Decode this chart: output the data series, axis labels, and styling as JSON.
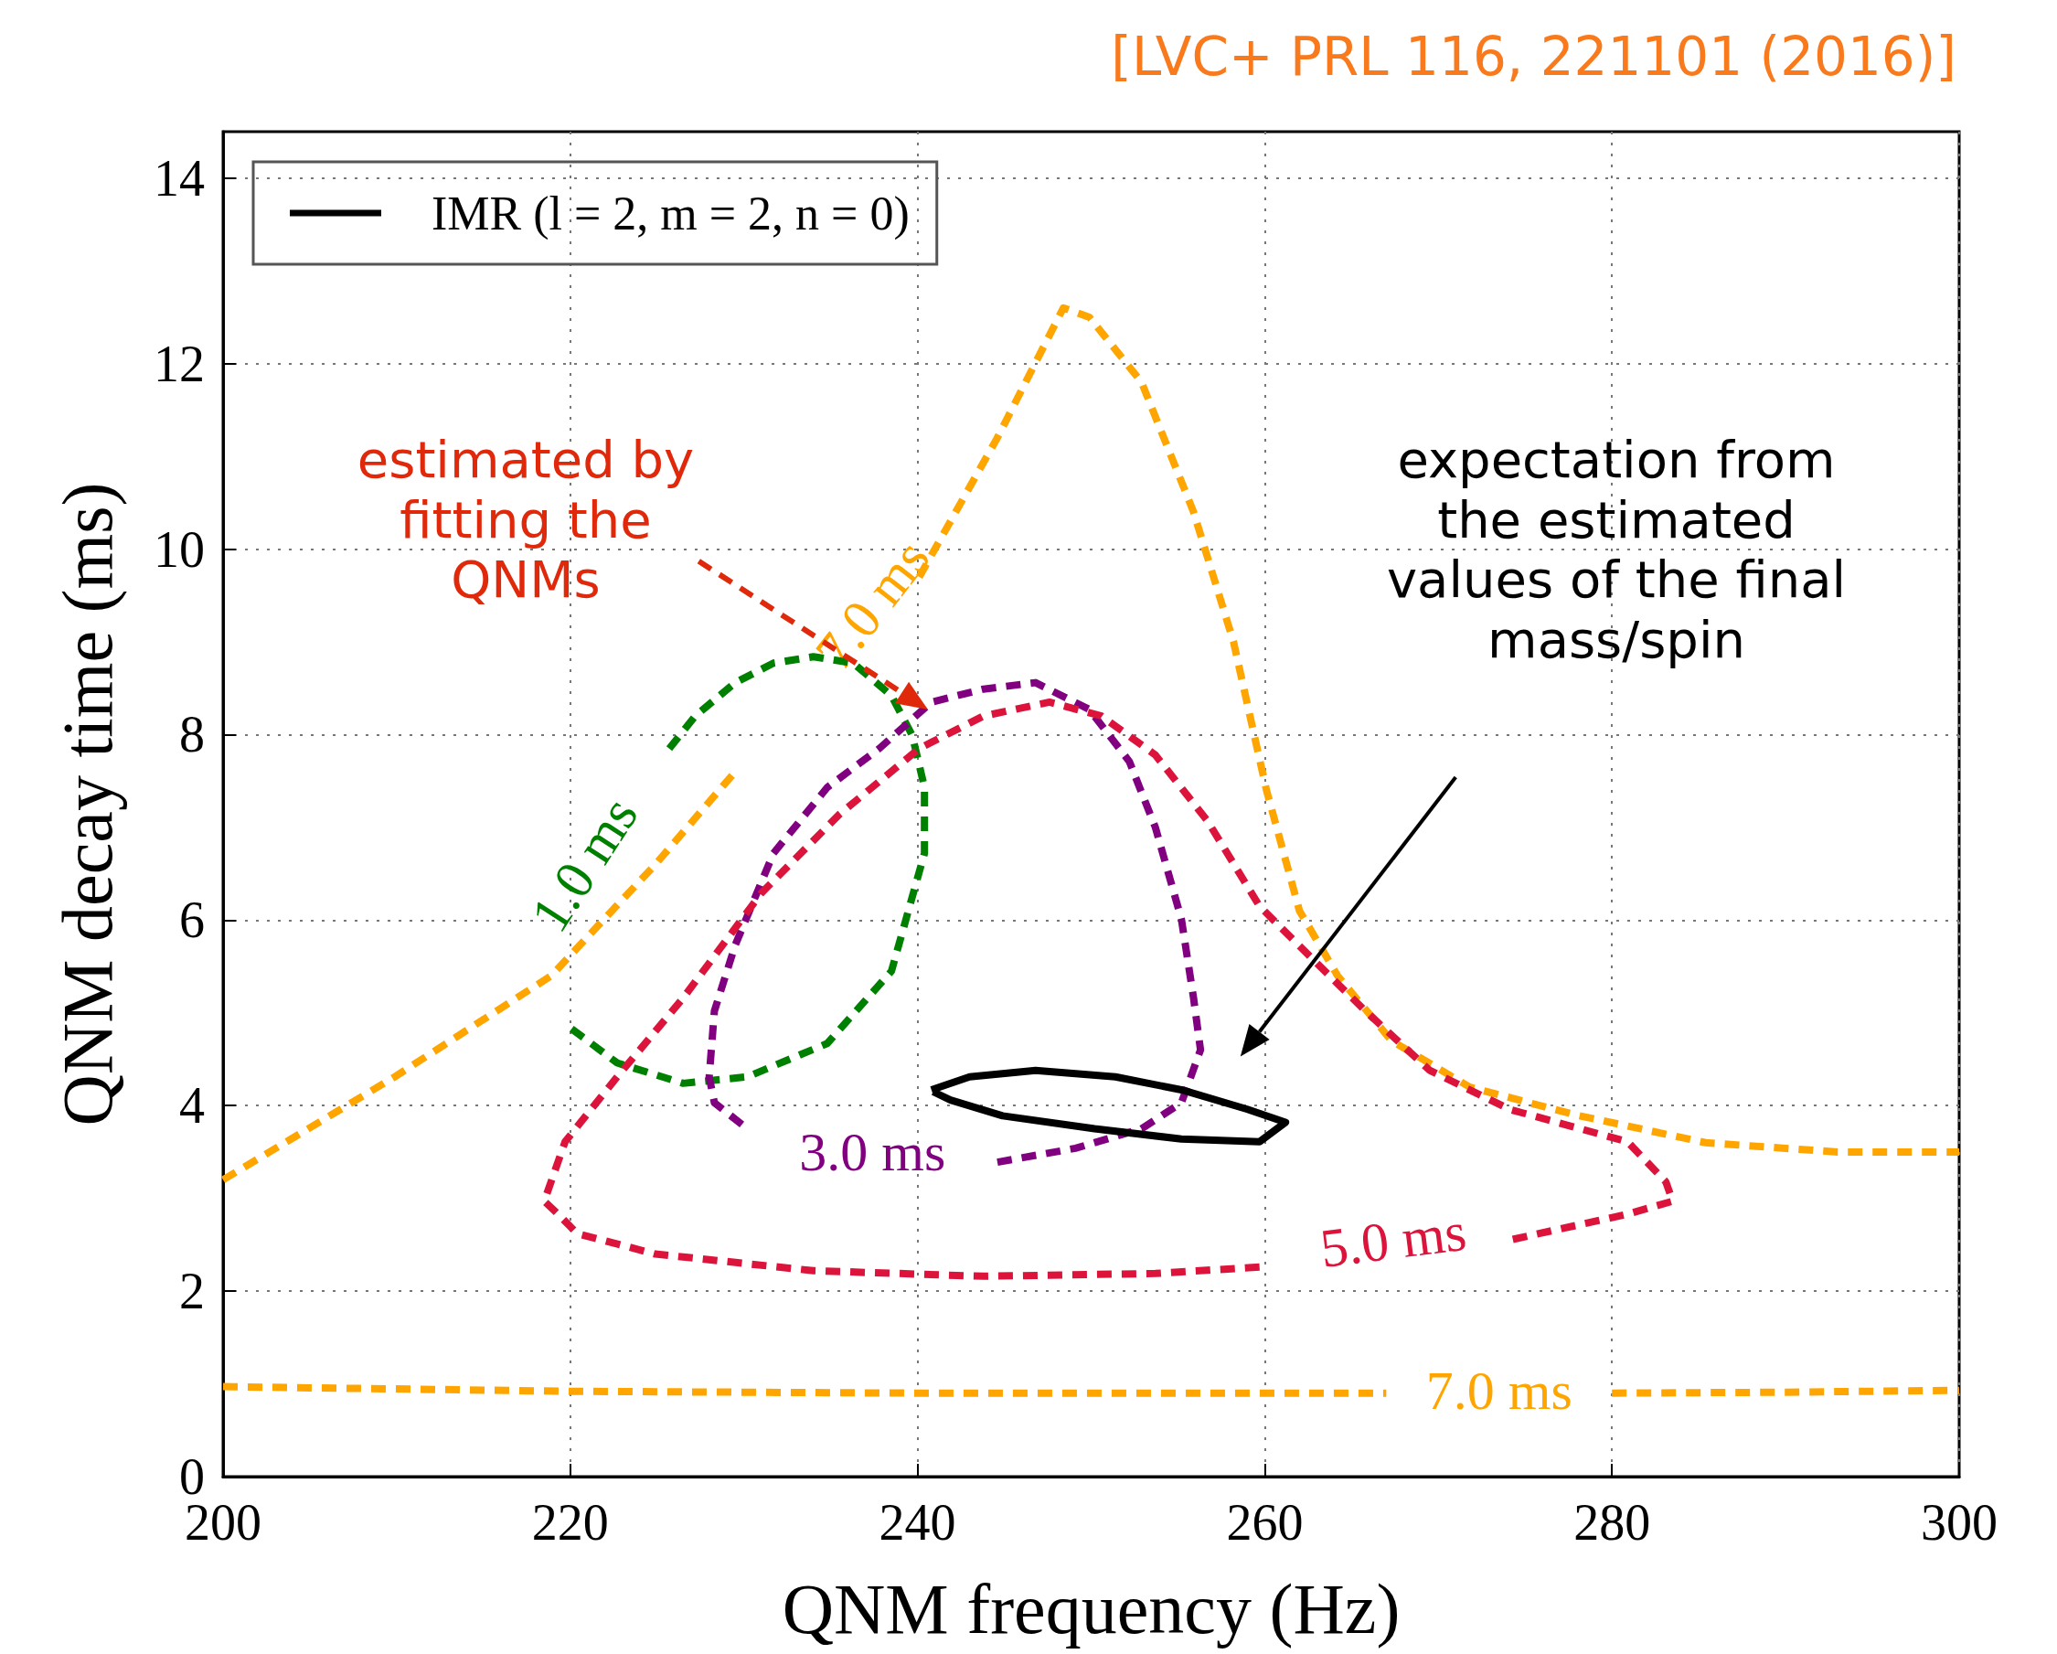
{
  "chart_data": {
    "type": "line",
    "xlabel": "QNM frequency (Hz)",
    "ylabel": "QNM decay time (ms)",
    "xlim": [
      200,
      300
    ],
    "xticks": [
      200,
      220,
      240,
      260,
      280,
      300
    ],
    "ylim": [
      0,
      14.5
    ],
    "yticks": [
      0,
      2,
      4,
      6,
      8,
      10,
      12,
      14
    ],
    "grid": true,
    "legend": "top left",
    "marker": "none",
    "series": [
      {
        "color": "#ffa500",
        "line_style": "dashed",
        "x": [
          200,
          209.8,
          218.9,
          224.9,
          229.5,
          null,
          240.1,
          244.6,
          248.4,
          249.9,
          252.9,
          255.9,
          258.2,
          260.1,
          262,
          264.2,
          267.3,
          271.8,
          277.9,
          285.4,
          293,
          300
        ],
        "values": [
          3.2,
          4.3,
          5.4,
          6.6,
          7.6,
          null,
          9.7,
          11.2,
          12.6,
          12.5,
          11.8,
          10.4,
          9,
          7.4,
          6.1,
          5.4,
          4.7,
          4.2,
          3.9,
          3.6,
          3.5,
          3.5
        ]
      },
      {
        "color": "#ffa500",
        "line_style": "dashed",
        "x": [
          200,
          220,
          240,
          260,
          267,
          null,
          280,
          290,
          300
        ],
        "values": [
          0.97,
          0.92,
          0.9,
          0.9,
          0.9,
          null,
          0.9,
          0.91,
          0.93
        ]
      },
      {
        "color": "#008000",
        "line_style": "dashed",
        "x": [
          225.7,
          227.2,
          229.5,
          231.7,
          234,
          236.3,
          238.5,
          239.7,
          240.4,
          240.4,
          238.5,
          234.8,
          230.2,
          226.5,
          222.7,
          219.7,
          null
        ],
        "values": [
          7.85,
          8.2,
          8.56,
          8.77,
          8.84,
          8.77,
          8.42,
          7.99,
          7.43,
          6.72,
          5.45,
          4.67,
          4.31,
          4.24,
          4.46,
          4.88,
          null
        ]
      },
      {
        "color": "#800080",
        "line_style": "dashed",
        "x": [
          244.6,
          249.1,
          252.9,
          255.2,
          256.3,
          255.9,
          255.2,
          253.7,
          252.2,
          249.9,
          246.8,
          243.8,
          240.8,
          237.8,
          234.8,
          231.7,
          229.5,
          228.3,
          228,
          228.3,
          230.2,
          null
        ],
        "values": [
          3.39,
          3.54,
          3.75,
          4.03,
          4.6,
          5.16,
          6.01,
          7,
          7.71,
          8.27,
          8.56,
          8.49,
          8.35,
          7.85,
          7.43,
          6.72,
          5.73,
          5.02,
          4.31,
          4.03,
          3.75,
          null
        ]
      },
      {
        "color": "#dc143c",
        "line_style": "dashed",
        "x": [
          259.7,
          253.7,
          243.8,
          234,
          224.9,
          220.4,
          219.3,
          218.5,
          219.7,
          222.7,
          226.5,
          231,
          235.5,
          240.1,
          243.8,
          247.6,
          250.6,
          253.7,
          256.7,
          259.7,
          262.7,
          265.8,
          269.5,
          274.1,
          280.9,
          283.1,
          283.5,
          280.9,
          274.1,
          null
        ],
        "values": [
          2.26,
          2.19,
          2.16,
          2.22,
          2.4,
          2.62,
          2.83,
          2.97,
          3.61,
          4.31,
          5.16,
          6.29,
          7.14,
          7.85,
          8.2,
          8.35,
          8.2,
          7.78,
          7.07,
          6.15,
          5.59,
          5.02,
          4.38,
          3.96,
          3.61,
          3.18,
          2.97,
          2.83,
          2.55,
          null
        ]
      },
      {
        "name": "IMR (l = 2, m = 2, n = 0)",
        "color": "#000000",
        "line_style": "solid",
        "x": [
          240.8,
          243,
          246.8,
          251.4,
          255.2,
          259,
          261.2,
          259.7,
          255.2,
          250.2,
          244.9,
          241.9,
          240.9,
          null
        ],
        "values": [
          4.17,
          4.31,
          4.38,
          4.31,
          4.17,
          3.96,
          3.82,
          3.61,
          3.64,
          3.75,
          3.89,
          4.06,
          4.15,
          null
        ]
      }
    ],
    "annotations": [
      "[LVC+ PRL 116, 221101 (2016)]",
      "estimated by\nfitting the\nQNMs",
      "expectation from\nthe estimated\nvalues of the final\nmass/spin",
      "7.0 ms",
      "1.0 ms",
      "3.0 ms",
      "5.0 ms",
      "7.0 ms"
    ]
  }
}
